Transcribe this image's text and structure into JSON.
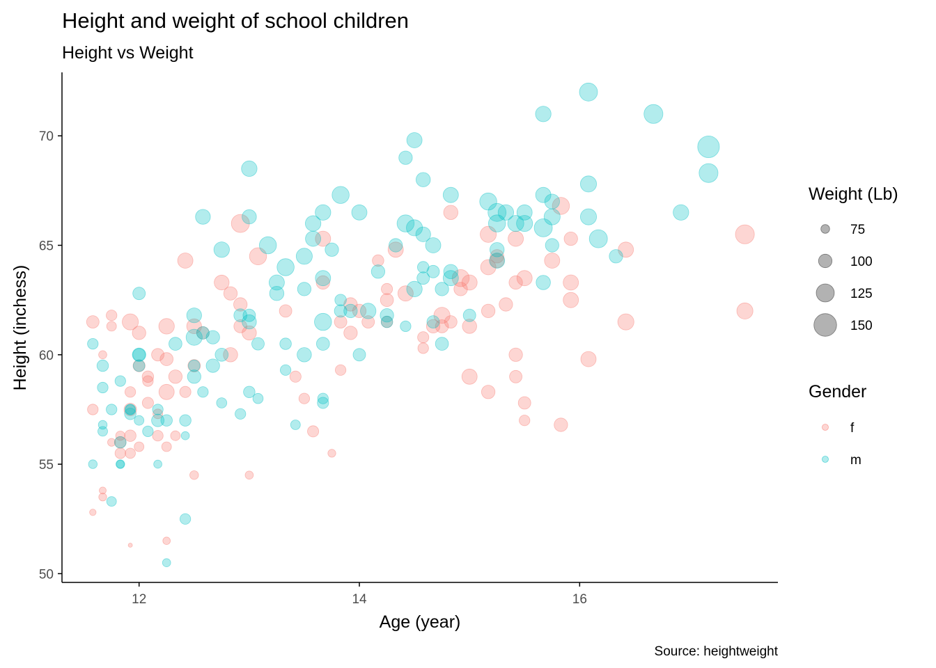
{
  "chart_data": {
    "type": "scatter",
    "title": "Height and weight of school children",
    "subtitle": "Height vs Weight",
    "xlabel": "Age (year)",
    "ylabel": "Height (inchess)",
    "caption": "Source: heightweight",
    "xlim": [
      11.3,
      17.8
    ],
    "ylim": [
      49.6,
      72.9
    ],
    "x_ticks": [
      12,
      14,
      16
    ],
    "y_ticks": [
      50,
      55,
      60,
      65,
      70
    ],
    "grid": false,
    "point_opacity": 0.3,
    "legend_position": "right",
    "size_legend": {
      "title": "Weight (Lb)",
      "entries": [
        75,
        100,
        125,
        150
      ]
    },
    "color_legend": {
      "title": "Gender"
    },
    "series": [
      {
        "name": "f",
        "color": "#F8766D",
        "points": [
          [
            11.58,
            61.5,
            95
          ],
          [
            11.58,
            57.5,
            85
          ],
          [
            11.58,
            52.8,
            63
          ],
          [
            11.67,
            53.8,
            65
          ],
          [
            11.67,
            53.5,
            70
          ],
          [
            11.67,
            60,
            72
          ],
          [
            11.75,
            61.8,
            85
          ],
          [
            11.75,
            61.3,
            80
          ],
          [
            11.75,
            56,
            70
          ],
          [
            11.83,
            56.3,
            78
          ],
          [
            11.83,
            55.5,
            85
          ],
          [
            11.83,
            56,
            90
          ],
          [
            11.92,
            61.5,
            115
          ],
          [
            11.92,
            57.5,
            95
          ],
          [
            11.92,
            58.3,
            85
          ],
          [
            11.92,
            56.3,
            90
          ],
          [
            11.92,
            55.5,
            83
          ],
          [
            11.92,
            51.3,
            50
          ],
          [
            12,
            61,
            100
          ],
          [
            12,
            59.5,
            93
          ],
          [
            12,
            55.8,
            80
          ],
          [
            12.08,
            59,
            90
          ],
          [
            12.08,
            57.8,
            88
          ],
          [
            12.08,
            58.8,
            85
          ],
          [
            12.17,
            60,
            95
          ],
          [
            12.17,
            56.3,
            85
          ],
          [
            12.17,
            57.3,
            80
          ],
          [
            12.25,
            61.3,
            112
          ],
          [
            12.25,
            58.3,
            110
          ],
          [
            12.25,
            59.8,
            98
          ],
          [
            12.25,
            55.8,
            80
          ],
          [
            12.25,
            51.5,
            68
          ],
          [
            12.33,
            56.3,
            80
          ],
          [
            12.33,
            59,
            100
          ],
          [
            12.42,
            64.3,
            110
          ],
          [
            12.42,
            58.3,
            88
          ],
          [
            12.5,
            61.3,
            108
          ],
          [
            12.5,
            59.5,
            95
          ],
          [
            12.5,
            54.5,
            75
          ],
          [
            12.58,
            61,
            95
          ],
          [
            12.75,
            63.3,
            108
          ],
          [
            12.83,
            62.8,
            100
          ],
          [
            12.83,
            60,
            105
          ],
          [
            12.92,
            66,
            125
          ],
          [
            12.92,
            62.3,
            100
          ],
          [
            12.92,
            61.3,
            98
          ],
          [
            13,
            61,
            105
          ],
          [
            13,
            54.5,
            72
          ],
          [
            13.08,
            64.5,
            120
          ],
          [
            13.33,
            62,
            95
          ],
          [
            13.42,
            59,
            88
          ],
          [
            13.5,
            58,
            85
          ],
          [
            13.58,
            56.5,
            88
          ],
          [
            13.67,
            65.3,
            110
          ],
          [
            13.67,
            63.3,
            100
          ],
          [
            13.75,
            55.5,
            70
          ],
          [
            13.83,
            59.3,
            85
          ],
          [
            13.83,
            61.5,
            95
          ],
          [
            13.92,
            62.3,
            100
          ],
          [
            13.92,
            61,
            100
          ],
          [
            14,
            62,
            100
          ],
          [
            14.08,
            61.5,
            95
          ],
          [
            14.17,
            64.3,
            90
          ],
          [
            14.25,
            62.5,
            98
          ],
          [
            14.25,
            63,
            88
          ],
          [
            14.25,
            61.5,
            90
          ],
          [
            14.33,
            64.8,
            110
          ],
          [
            14.42,
            62.8,
            110
          ],
          [
            14.58,
            60.8,
            88
          ],
          [
            14.58,
            60.3,
            85
          ],
          [
            14.67,
            61.3,
            100
          ],
          [
            14.75,
            61.8,
            115
          ],
          [
            14.75,
            61.3,
            98
          ],
          [
            14.83,
            66.5,
            105
          ],
          [
            14.83,
            61.5,
            95
          ],
          [
            14.92,
            63.5,
            120
          ],
          [
            14.92,
            63,
            100
          ],
          [
            15,
            63.3,
            110
          ],
          [
            15,
            61.3,
            105
          ],
          [
            15,
            59,
            110
          ],
          [
            15.17,
            65.5,
            115
          ],
          [
            15.17,
            64,
            110
          ],
          [
            15.17,
            62,
            100
          ],
          [
            15.17,
            58.3,
            100
          ],
          [
            15.25,
            64.3,
            105
          ],
          [
            15.25,
            64.5,
            100
          ],
          [
            15.33,
            62.3,
            100
          ],
          [
            15.42,
            65.3,
            110
          ],
          [
            15.42,
            63.3,
            100
          ],
          [
            15.42,
            60,
            100
          ],
          [
            15.42,
            59,
            95
          ],
          [
            15.5,
            63.5,
            110
          ],
          [
            15.5,
            57.8,
            95
          ],
          [
            15.5,
            57,
            85
          ],
          [
            15.75,
            64.3,
            110
          ],
          [
            15.83,
            66.8,
            120
          ],
          [
            15.83,
            56.8,
            100
          ],
          [
            15.92,
            65.3,
            100
          ],
          [
            15.92,
            63.3,
            110
          ],
          [
            15.92,
            62.5,
            110
          ],
          [
            16.08,
            59.8,
            110
          ],
          [
            16.42,
            64.8,
            110
          ],
          [
            16.42,
            61.5,
            115
          ],
          [
            17.5,
            65.5,
            130
          ],
          [
            17.5,
            62,
            115
          ]
        ]
      },
      {
        "name": "m",
        "color": "#00BFC4",
        "points": [
          [
            11.58,
            60.5,
            85
          ],
          [
            11.58,
            55,
            75
          ],
          [
            11.67,
            59.5,
            90
          ],
          [
            11.67,
            58.5,
            85
          ],
          [
            11.67,
            56.8,
            75
          ],
          [
            11.67,
            56.5,
            80
          ],
          [
            11.75,
            57.5,
            85
          ],
          [
            11.75,
            53.3,
            80
          ],
          [
            11.83,
            58.8,
            85
          ],
          [
            11.83,
            56,
            90
          ],
          [
            11.83,
            55,
            75
          ],
          [
            11.83,
            55,
            70
          ],
          [
            11.92,
            57.5,
            85
          ],
          [
            11.92,
            57.5,
            80
          ],
          [
            11.92,
            57.3,
            90
          ],
          [
            12,
            62.8,
            95
          ],
          [
            12,
            60,
            100
          ],
          [
            12,
            60,
            95
          ],
          [
            12,
            59.5,
            90
          ],
          [
            12,
            57,
            80
          ],
          [
            12.08,
            56.5,
            85
          ],
          [
            12.17,
            57.5,
            85
          ],
          [
            12.17,
            57,
            95
          ],
          [
            12.17,
            55,
            72
          ],
          [
            12.25,
            57,
            90
          ],
          [
            12.25,
            50.5,
            72
          ],
          [
            12.33,
            60.5,
            98
          ],
          [
            12.42,
            57,
            90
          ],
          [
            12.42,
            56.3,
            72
          ],
          [
            12.42,
            52.5,
            85
          ],
          [
            12.5,
            61.8,
            108
          ],
          [
            12.5,
            60.8,
            115
          ],
          [
            12.5,
            59.5,
            90
          ],
          [
            12.5,
            59,
            100
          ],
          [
            12.58,
            66.3,
            108
          ],
          [
            12.58,
            61,
            95
          ],
          [
            12.58,
            58.3,
            85
          ],
          [
            12.67,
            59.5,
            100
          ],
          [
            12.67,
            60.8,
            100
          ],
          [
            12.75,
            64.8,
            112
          ],
          [
            12.75,
            60,
            98
          ],
          [
            12.75,
            57.8,
            83
          ],
          [
            12.92,
            61.8,
            98
          ],
          [
            12.92,
            57.3,
            85
          ],
          [
            13,
            68.5,
            112
          ],
          [
            13,
            66.3,
            105
          ],
          [
            13,
            61.8,
            95
          ],
          [
            13,
            61.5,
            105
          ],
          [
            13,
            58.3,
            90
          ],
          [
            13.08,
            60.5,
            95
          ],
          [
            13.08,
            58,
            83
          ],
          [
            13.17,
            65,
            120
          ],
          [
            13.25,
            63.3,
            110
          ],
          [
            13.25,
            62.8,
            105
          ],
          [
            13.33,
            64,
            120
          ],
          [
            13.33,
            60.5,
            90
          ],
          [
            13.33,
            59.3,
            85
          ],
          [
            13.42,
            56.8,
            80
          ],
          [
            13.5,
            64.5,
            115
          ],
          [
            13.5,
            63,
            100
          ],
          [
            13.5,
            60,
            105
          ],
          [
            13.58,
            66,
            112
          ],
          [
            13.58,
            65.3,
            110
          ],
          [
            13.67,
            66.5,
            112
          ],
          [
            13.67,
            63.5,
            110
          ],
          [
            13.67,
            61.5,
            120
          ],
          [
            13.67,
            60.5,
            98
          ],
          [
            13.67,
            58,
            85
          ],
          [
            13.67,
            57.8,
            88
          ],
          [
            13.75,
            64.8,
            100
          ],
          [
            13.83,
            67.3,
            120
          ],
          [
            13.83,
            62.5,
            90
          ],
          [
            13.83,
            62,
            95
          ],
          [
            13.92,
            62,
            100
          ],
          [
            14,
            66.5,
            110
          ],
          [
            14,
            60,
            95
          ],
          [
            14.08,
            62,
            112
          ],
          [
            14.17,
            63.8,
            100
          ],
          [
            14.25,
            61.5,
            90
          ],
          [
            14.25,
            61.8,
            100
          ],
          [
            14.33,
            65,
            100
          ],
          [
            14.42,
            69,
            100
          ],
          [
            14.42,
            66,
            120
          ],
          [
            14.42,
            61.3,
            85
          ],
          [
            14.5,
            69.8,
            110
          ],
          [
            14.5,
            65.8,
            115
          ],
          [
            14.5,
            63,
            112
          ],
          [
            14.58,
            68,
            105
          ],
          [
            14.58,
            65.5,
            108
          ],
          [
            14.58,
            64,
            90
          ],
          [
            14.58,
            63.5,
            95
          ],
          [
            14.67,
            65,
            110
          ],
          [
            14.67,
            63.8,
            95
          ],
          [
            14.67,
            61.5,
            95
          ],
          [
            14.75,
            63,
            100
          ],
          [
            14.75,
            60.5,
            98
          ],
          [
            14.83,
            67.3,
            110
          ],
          [
            14.83,
            63.8,
            105
          ],
          [
            14.83,
            63.5,
            110
          ],
          [
            15,
            61.8,
            95
          ],
          [
            15.17,
            67,
            120
          ],
          [
            15.25,
            66.5,
            125
          ],
          [
            15.25,
            66,
            120
          ],
          [
            15.25,
            64.8,
            105
          ],
          [
            15.25,
            64.3,
            110
          ],
          [
            15.33,
            66.5,
            112
          ],
          [
            15.42,
            66,
            115
          ],
          [
            15.5,
            66.5,
            110
          ],
          [
            15.5,
            66,
            115
          ],
          [
            15.67,
            71,
            112
          ],
          [
            15.67,
            67.3,
            110
          ],
          [
            15.67,
            65.8,
            125
          ],
          [
            15.67,
            63.3,
            105
          ],
          [
            15.75,
            67,
            108
          ],
          [
            15.75,
            66.3,
            115
          ],
          [
            15.75,
            65,
            100
          ],
          [
            16.08,
            72,
            125
          ],
          [
            16.08,
            67.8,
            115
          ],
          [
            16.08,
            66.3,
            115
          ],
          [
            16.17,
            65.3,
            125
          ],
          [
            16.33,
            64.5,
            100
          ],
          [
            16.67,
            71,
            130
          ],
          [
            16.92,
            66.5,
            112
          ],
          [
            17.17,
            69.5,
            145
          ],
          [
            17.17,
            68.3,
            130
          ]
        ]
      }
    ]
  }
}
